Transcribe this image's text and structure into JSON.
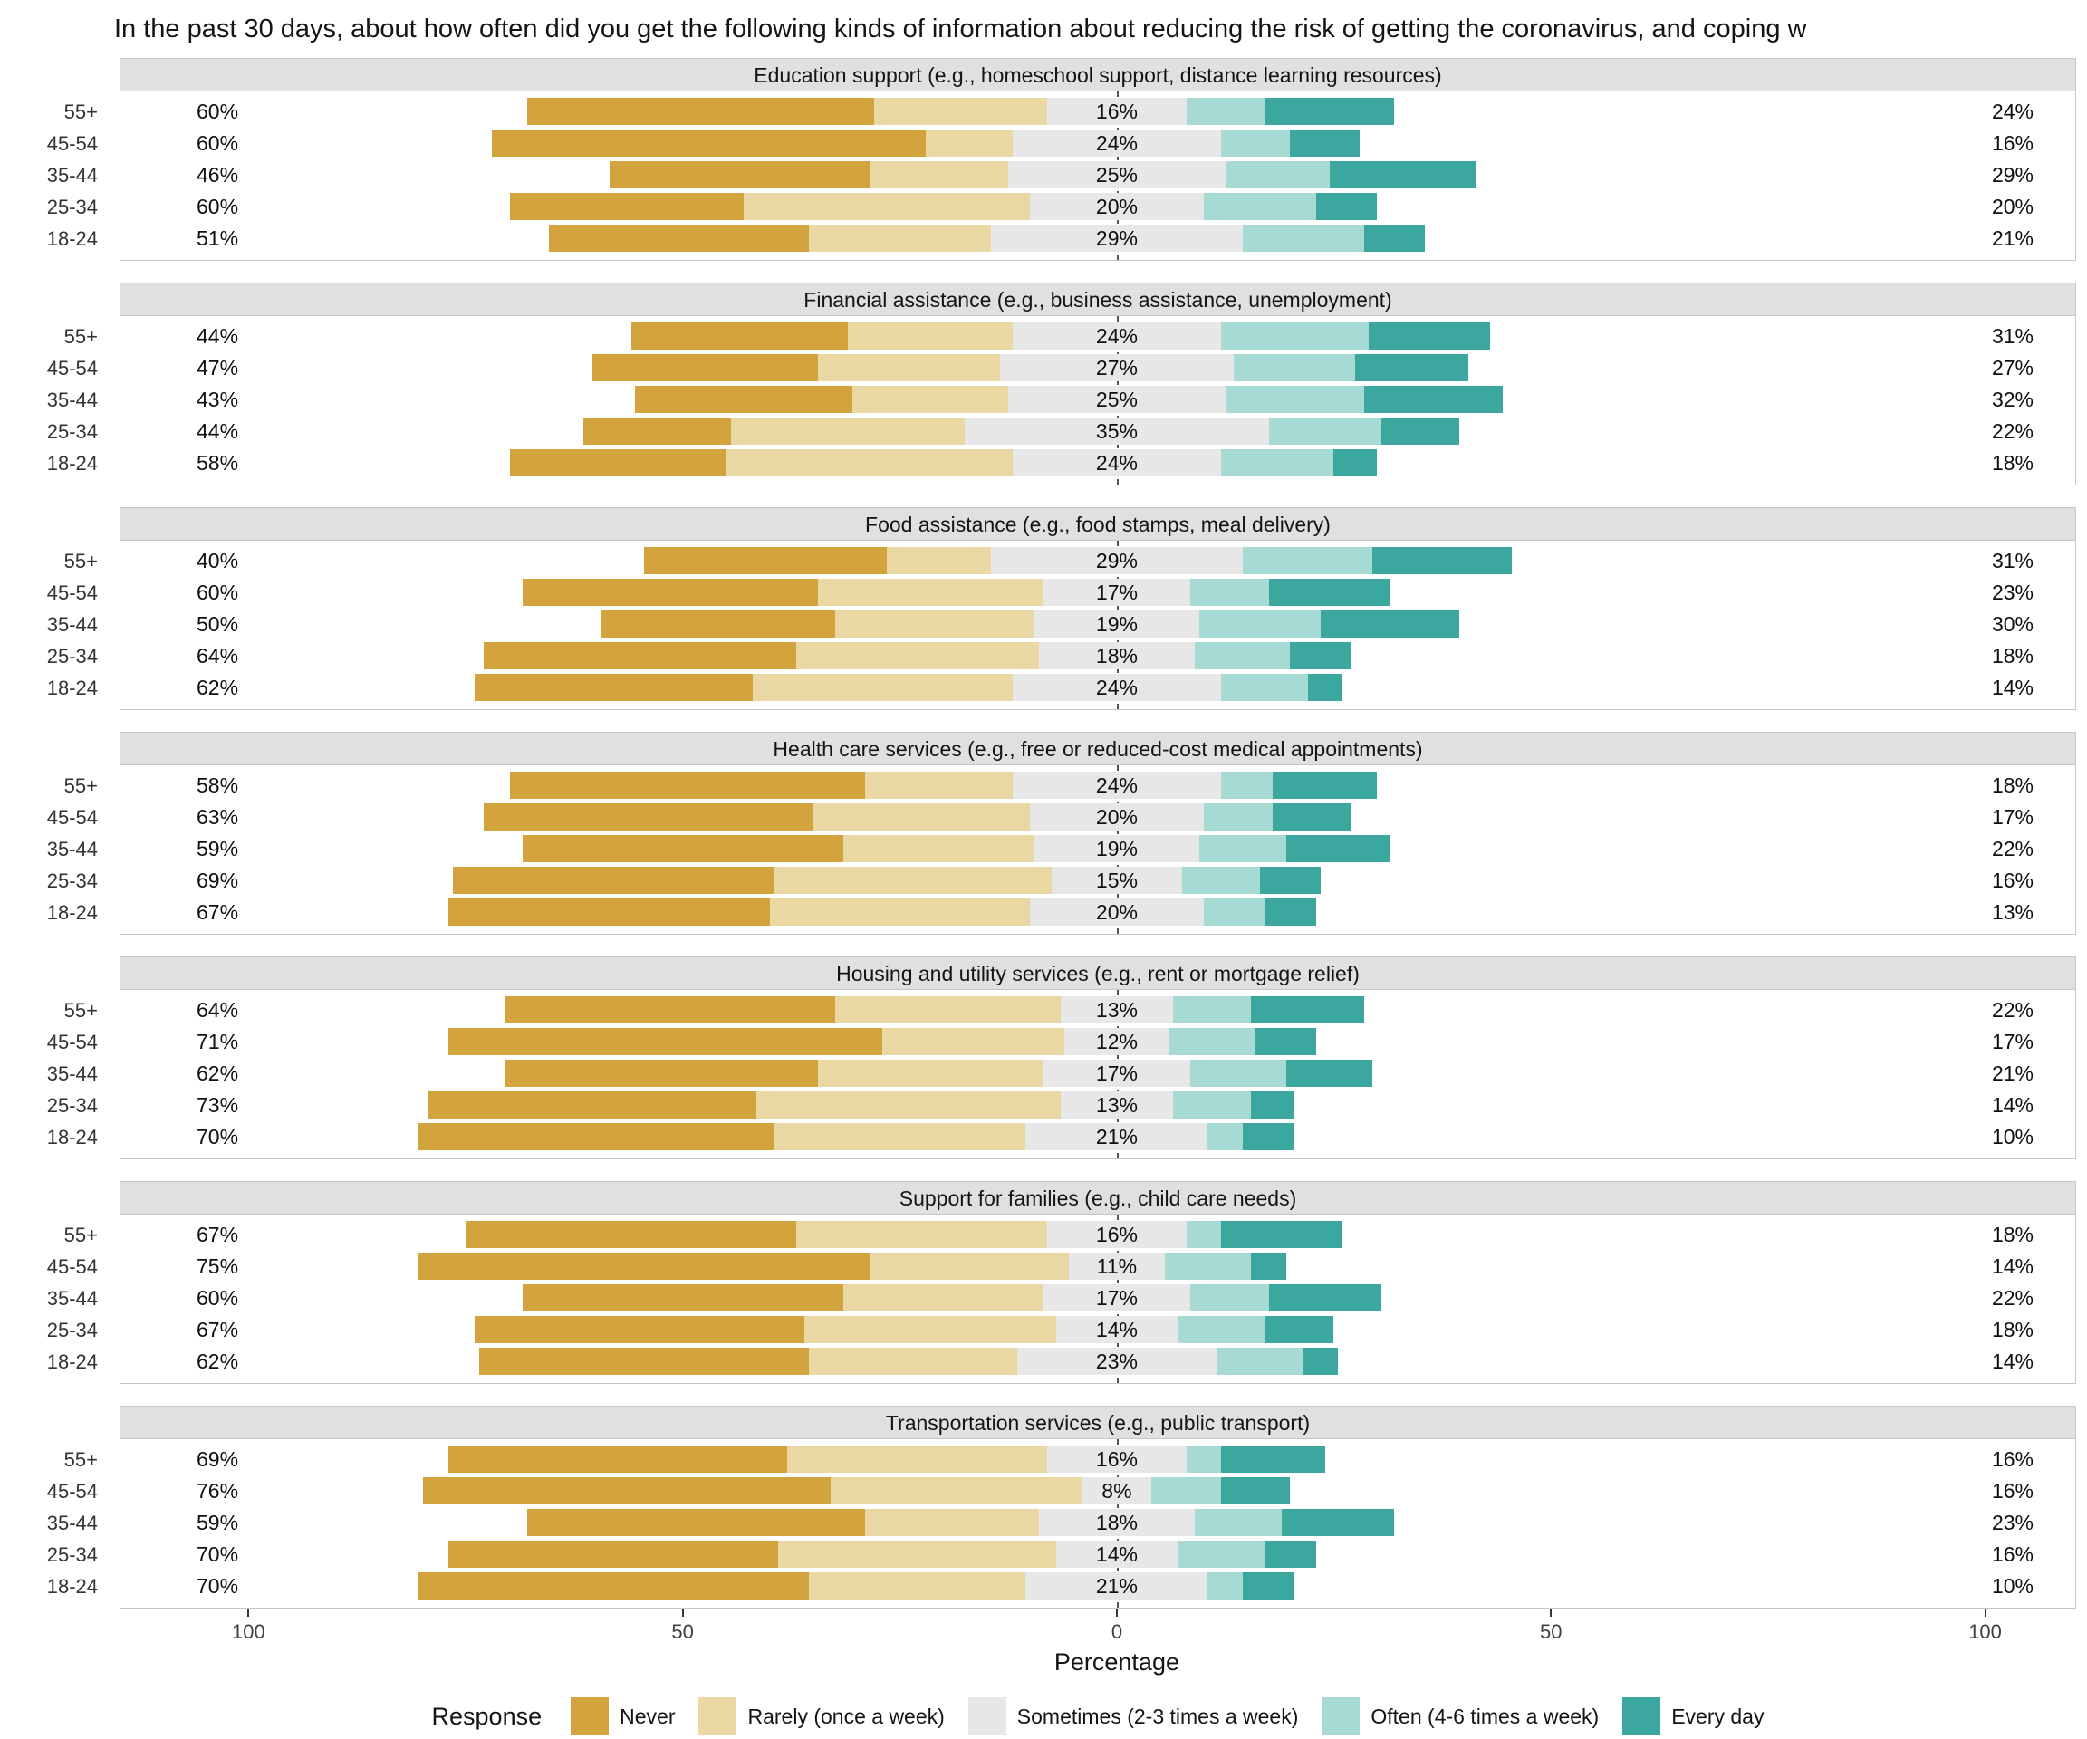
{
  "title": "In the past 30 days, about how often did you get the following kinds of information about reducing the risk of getting the coronavirus, and coping w",
  "axis": {
    "xlabel": "Percentage",
    "ticks": [
      "100",
      "50",
      "0",
      "50",
      "100"
    ],
    "tick_positions": [
      -100,
      -50,
      0,
      50,
      100
    ]
  },
  "legend": {
    "title": "Response",
    "items": [
      {
        "key": "never",
        "label": "Never",
        "color": "#D3A33E"
      },
      {
        "key": "rarely",
        "label": "Rarely (once a week)",
        "color": "#E9D8A4"
      },
      {
        "key": "sometimes",
        "label": "Sometimes (2-3 times a week)",
        "color": "#E7E7E7"
      },
      {
        "key": "often",
        "label": "Often (4-6 times a week)",
        "color": "#A7DAD2"
      },
      {
        "key": "every_day",
        "label": "Every day",
        "color": "#3BA79E"
      }
    ]
  },
  "chart_data": {
    "type": "bar",
    "subtype": "diverging-stacked-likert",
    "unit": "percent",
    "age_groups": [
      "55+",
      "45-54",
      "35-44",
      "25-34",
      "18-24"
    ],
    "response_levels": [
      "Never",
      "Rarely (once a week)",
      "Sometimes (2-3 times a week)",
      "Often (4-6 times a week)",
      "Every day"
    ],
    "panels": [
      {
        "title": "Education support (e.g., homeschool support, distance learning resources)",
        "rows": [
          {
            "group": "55+",
            "never": 40,
            "rarely": 20,
            "sometimes": 16,
            "often": 9,
            "every_day": 15,
            "left_label": "60%",
            "center_label": "16%",
            "right_label": "24%"
          },
          {
            "group": "45-54",
            "never": 50,
            "rarely": 10,
            "sometimes": 24,
            "often": 8,
            "every_day": 8,
            "left_label": "60%",
            "center_label": "24%",
            "right_label": "16%"
          },
          {
            "group": "35-44",
            "never": 30,
            "rarely": 16,
            "sometimes": 25,
            "often": 12,
            "every_day": 17,
            "left_label": "46%",
            "center_label": "25%",
            "right_label": "29%"
          },
          {
            "group": "25-34",
            "never": 27,
            "rarely": 33,
            "sometimes": 20,
            "often": 13,
            "every_day": 7,
            "left_label": "60%",
            "center_label": "20%",
            "right_label": "20%"
          },
          {
            "group": "18-24",
            "never": 30,
            "rarely": 21,
            "sometimes": 29,
            "often": 14,
            "every_day": 7,
            "left_label": "51%",
            "center_label": "29%",
            "right_label": "21%"
          }
        ]
      },
      {
        "title": "Financial assistance (e.g., business assistance, unemployment)",
        "rows": [
          {
            "group": "55+",
            "never": 25,
            "rarely": 19,
            "sometimes": 24,
            "often": 17,
            "every_day": 14,
            "left_label": "44%",
            "center_label": "24%",
            "right_label": "31%"
          },
          {
            "group": "45-54",
            "never": 26,
            "rarely": 21,
            "sometimes": 27,
            "often": 14,
            "every_day": 13,
            "left_label": "47%",
            "center_label": "27%",
            "right_label": "27%"
          },
          {
            "group": "35-44",
            "never": 25,
            "rarely": 18,
            "sometimes": 25,
            "often": 16,
            "every_day": 16,
            "left_label": "43%",
            "center_label": "25%",
            "right_label": "32%"
          },
          {
            "group": "25-34",
            "never": 17,
            "rarely": 27,
            "sometimes": 35,
            "often": 13,
            "every_day": 9,
            "left_label": "44%",
            "center_label": "35%",
            "right_label": "22%"
          },
          {
            "group": "18-24",
            "never": 25,
            "rarely": 33,
            "sometimes": 24,
            "often": 13,
            "every_day": 5,
            "left_label": "58%",
            "center_label": "24%",
            "right_label": "18%"
          }
        ]
      },
      {
        "title": "Food assistance (e.g., food stamps, meal delivery)",
        "rows": [
          {
            "group": "55+",
            "never": 28,
            "rarely": 12,
            "sometimes": 29,
            "often": 15,
            "every_day": 16,
            "left_label": "40%",
            "center_label": "29%",
            "right_label": "31%"
          },
          {
            "group": "45-54",
            "never": 34,
            "rarely": 26,
            "sometimes": 17,
            "often": 9,
            "every_day": 14,
            "left_label": "60%",
            "center_label": "17%",
            "right_label": "23%"
          },
          {
            "group": "35-44",
            "never": 27,
            "rarely": 23,
            "sometimes": 19,
            "often": 14,
            "every_day": 16,
            "left_label": "50%",
            "center_label": "19%",
            "right_label": "30%"
          },
          {
            "group": "25-34",
            "never": 36,
            "rarely": 28,
            "sometimes": 18,
            "often": 11,
            "every_day": 7,
            "left_label": "64%",
            "center_label": "18%",
            "right_label": "18%"
          },
          {
            "group": "18-24",
            "never": 32,
            "rarely": 30,
            "sometimes": 24,
            "often": 10,
            "every_day": 4,
            "left_label": "62%",
            "center_label": "24%",
            "right_label": "14%"
          }
        ]
      },
      {
        "title": "Health care services (e.g., free or reduced-cost medical appointments)",
        "rows": [
          {
            "group": "55+",
            "never": 41,
            "rarely": 17,
            "sometimes": 24,
            "often": 6,
            "every_day": 12,
            "left_label": "58%",
            "center_label": "24%",
            "right_label": "18%"
          },
          {
            "group": "45-54",
            "never": 38,
            "rarely": 25,
            "sometimes": 20,
            "often": 8,
            "every_day": 9,
            "left_label": "63%",
            "center_label": "20%",
            "right_label": "17%"
          },
          {
            "group": "35-44",
            "never": 37,
            "rarely": 22,
            "sometimes": 19,
            "often": 10,
            "every_day": 12,
            "left_label": "59%",
            "center_label": "19%",
            "right_label": "22%"
          },
          {
            "group": "25-34",
            "never": 37,
            "rarely": 32,
            "sometimes": 15,
            "often": 9,
            "every_day": 7,
            "left_label": "69%",
            "center_label": "15%",
            "right_label": "16%"
          },
          {
            "group": "18-24",
            "never": 37,
            "rarely": 30,
            "sometimes": 20,
            "often": 7,
            "every_day": 6,
            "left_label": "67%",
            "center_label": "20%",
            "right_label": "13%"
          }
        ]
      },
      {
        "title": "Housing and utility services (e.g., rent or mortgage relief)",
        "rows": [
          {
            "group": "55+",
            "never": 38,
            "rarely": 26,
            "sometimes": 13,
            "often": 9,
            "every_day": 13,
            "left_label": "64%",
            "center_label": "13%",
            "right_label": "22%"
          },
          {
            "group": "45-54",
            "never": 50,
            "rarely": 21,
            "sometimes": 12,
            "often": 10,
            "every_day": 7,
            "left_label": "71%",
            "center_label": "12%",
            "right_label": "17%"
          },
          {
            "group": "35-44",
            "never": 36,
            "rarely": 26,
            "sometimes": 17,
            "often": 11,
            "every_day": 10,
            "left_label": "62%",
            "center_label": "17%",
            "right_label": "21%"
          },
          {
            "group": "25-34",
            "never": 38,
            "rarely": 35,
            "sometimes": 13,
            "often": 9,
            "every_day": 5,
            "left_label": "73%",
            "center_label": "13%",
            "right_label": "14%"
          },
          {
            "group": "18-24",
            "never": 41,
            "rarely": 29,
            "sometimes": 21,
            "often": 4,
            "every_day": 6,
            "left_label": "70%",
            "center_label": "21%",
            "right_label": "10%"
          }
        ]
      },
      {
        "title": "Support for families (e.g., child care needs)",
        "rows": [
          {
            "group": "55+",
            "never": 38,
            "rarely": 29,
            "sometimes": 16,
            "often": 4,
            "every_day": 14,
            "left_label": "67%",
            "center_label": "16%",
            "right_label": "18%"
          },
          {
            "group": "45-54",
            "never": 52,
            "rarely": 23,
            "sometimes": 11,
            "often": 10,
            "every_day": 4,
            "left_label": "75%",
            "center_label": "11%",
            "right_label": "14%"
          },
          {
            "group": "35-44",
            "never": 37,
            "rarely": 23,
            "sometimes": 17,
            "often": 9,
            "every_day": 13,
            "left_label": "60%",
            "center_label": "17%",
            "right_label": "22%"
          },
          {
            "group": "25-34",
            "never": 38,
            "rarely": 29,
            "sometimes": 14,
            "often": 10,
            "every_day": 8,
            "left_label": "67%",
            "center_label": "14%",
            "right_label": "18%"
          },
          {
            "group": "18-24",
            "never": 38,
            "rarely": 24,
            "sometimes": 23,
            "often": 10,
            "every_day": 4,
            "left_label": "62%",
            "center_label": "23%",
            "right_label": "14%"
          }
        ]
      },
      {
        "title": "Transportation services (e.g., public transport)",
        "rows": [
          {
            "group": "55+",
            "never": 39,
            "rarely": 30,
            "sometimes": 16,
            "often": 4,
            "every_day": 12,
            "left_label": "69%",
            "center_label": "16%",
            "right_label": "16%"
          },
          {
            "group": "45-54",
            "never": 47,
            "rarely": 29,
            "sometimes": 8,
            "often": 8,
            "every_day": 8,
            "left_label": "76%",
            "center_label": "8%",
            "right_label": "16%"
          },
          {
            "group": "35-44",
            "never": 39,
            "rarely": 20,
            "sometimes": 18,
            "often": 10,
            "every_day": 13,
            "left_label": "59%",
            "center_label": "18%",
            "right_label": "23%"
          },
          {
            "group": "25-34",
            "never": 38,
            "rarely": 32,
            "sometimes": 14,
            "often": 10,
            "every_day": 6,
            "left_label": "70%",
            "center_label": "14%",
            "right_label": "16%"
          },
          {
            "group": "18-24",
            "never": 45,
            "rarely": 25,
            "sometimes": 21,
            "often": 4,
            "every_day": 6,
            "left_label": "70%",
            "center_label": "21%",
            "right_label": "10%"
          }
        ]
      }
    ]
  }
}
